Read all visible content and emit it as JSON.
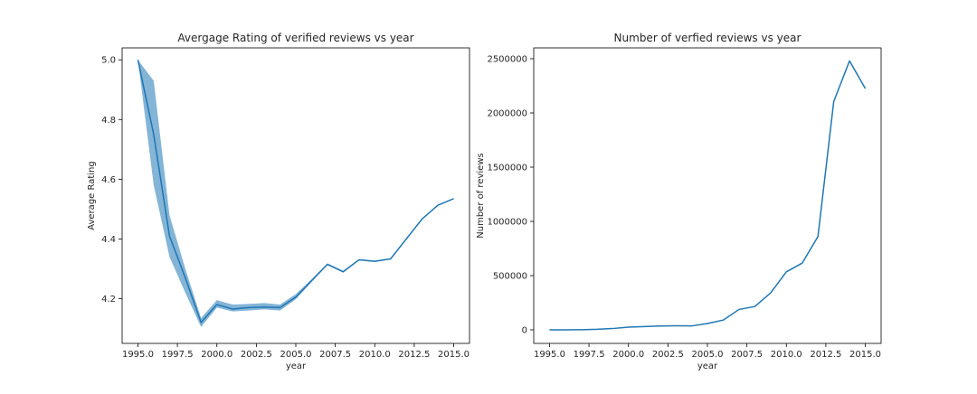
{
  "chart_data": [
    {
      "type": "line",
      "title": "Avergage Rating of verified reviews vs year",
      "xlabel": "year",
      "ylabel": "Average Rating",
      "xlim": [
        1994.0,
        2016.0
      ],
      "ylim": [
        4.05,
        5.04
      ],
      "xticks": [
        1995.0,
        1997.5,
        2000.0,
        2002.5,
        2005.0,
        2007.5,
        2010.0,
        2012.5,
        2015.0
      ],
      "xtick_labels": [
        "1995.0",
        "1997.5",
        "2000.0",
        "2002.5",
        "2005.0",
        "2007.5",
        "2010.0",
        "2012.5",
        "2015.0"
      ],
      "yticks": [
        4.2,
        4.4,
        4.6,
        4.8,
        5.0
      ],
      "ytick_labels": [
        "4.2",
        "4.4",
        "4.6",
        "4.8",
        "5.0"
      ],
      "color": "#1f77b4",
      "series": [
        {
          "x": [
            1995,
            1996,
            1997,
            1998,
            1999,
            2000,
            2001,
            2002,
            2003,
            2004,
            2005,
            2006,
            2007,
            2008,
            2009,
            2010,
            2011,
            2012,
            2013,
            2014,
            2015
          ],
          "values": [
            5.0,
            4.75,
            4.41,
            4.27,
            4.12,
            4.18,
            4.165,
            4.17,
            4.172,
            4.17,
            4.205,
            4.26,
            4.315,
            4.29,
            4.33,
            4.325,
            4.333,
            4.4,
            4.467,
            4.513,
            4.535
          ],
          "ci_low": [
            5.0,
            4.58,
            4.34,
            4.22,
            4.105,
            4.17,
            4.157,
            4.16,
            4.164,
            4.16,
            4.198,
            4.256,
            4.312,
            4.287,
            4.328,
            4.323,
            4.331,
            4.398,
            4.466,
            4.512,
            4.534
          ],
          "ci_high": [
            5.0,
            4.93,
            4.48,
            4.3,
            4.135,
            4.195,
            4.18,
            4.182,
            4.185,
            4.18,
            4.215,
            4.265,
            4.318,
            4.293,
            4.332,
            4.327,
            4.335,
            4.402,
            4.468,
            4.514,
            4.536
          ]
        }
      ]
    },
    {
      "type": "line",
      "title": "Number of verfied reviews vs year",
      "xlabel": "year",
      "ylabel": "Number of reviews",
      "xlim": [
        1994.0,
        2016.0
      ],
      "ylim": [
        -125000,
        2600000
      ],
      "xticks": [
        1995.0,
        1997.5,
        2000.0,
        2002.5,
        2005.0,
        2007.5,
        2010.0,
        2012.5,
        2015.0
      ],
      "xtick_labels": [
        "1995.0",
        "1997.5",
        "2000.0",
        "2002.5",
        "2005.0",
        "2007.5",
        "2010.0",
        "2012.5",
        "2015.0"
      ],
      "yticks": [
        0,
        500000,
        1000000,
        1500000,
        2000000,
        2500000
      ],
      "ytick_labels": [
        "0",
        "500000",
        "1000000",
        "1500000",
        "2000000",
        "2500000"
      ],
      "color": "#1f77b4",
      "series": [
        {
          "x": [
            1995,
            1996,
            1997,
            1998,
            1999,
            2000,
            2001,
            2002,
            2003,
            2004,
            2005,
            2006,
            2007,
            2008,
            2009,
            2010,
            2011,
            2012,
            2013,
            2014,
            2015
          ],
          "values": [
            0,
            500,
            1500,
            5000,
            12000,
            25000,
            30000,
            35000,
            37000,
            36000,
            58000,
            90000,
            188000,
            215000,
            340000,
            535000,
            615000,
            860000,
            2105000,
            2480000,
            2225000
          ]
        }
      ]
    }
  ]
}
